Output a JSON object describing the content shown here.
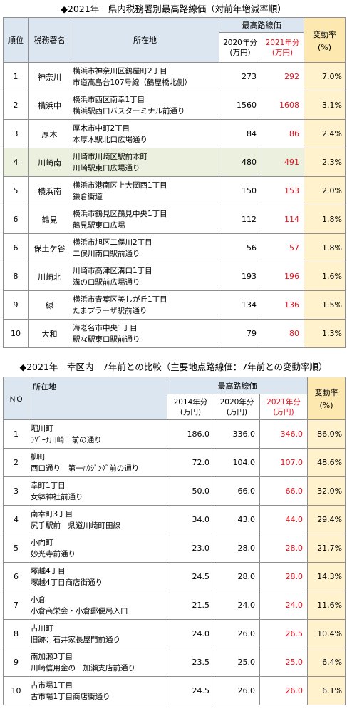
{
  "table1": {
    "title": "◆2021年　県内税務署別最高路線価（対前年増減率順）",
    "headers": {
      "rank": "順位",
      "office": "税務署名",
      "location": "所在地",
      "group": "最高路線価",
      "y2020": "2020年分",
      "y2021": "2021年分",
      "unit": "(万円)",
      "rate": "変動率",
      "rate_unit": "(%)"
    },
    "rows": [
      {
        "rank": "1",
        "office": "神奈川",
        "addr1": "横浜市神奈川区鶴屋町2丁目",
        "addr2": "市道高島台107号線（鶴屋橋北側）",
        "v2020": "273",
        "v2021": "292",
        "rate": "7.0%"
      },
      {
        "rank": "2",
        "office": "横浜中",
        "addr1": "横浜市西区南幸1丁目",
        "addr2": "横浜駅西口バスターミナル前通り",
        "v2020": "1560",
        "v2021": "1608",
        "rate": "3.1%"
      },
      {
        "rank": "3",
        "office": "厚木",
        "addr1": "厚木市中町2丁目",
        "addr2": "本厚木駅北口広場通り",
        "v2020": "84",
        "v2021": "86",
        "rate": "2.4%"
      },
      {
        "rank": "4",
        "office": "川崎南",
        "addr1": "川崎市川崎区駅前本町",
        "addr2": "川崎駅東口広場通り",
        "v2020": "480",
        "v2021": "491",
        "rate": "2.3%"
      },
      {
        "rank": "5",
        "office": "横浜南",
        "addr1": "横浜市港南区上大岡西1丁目",
        "addr2": "鎌倉街道",
        "v2020": "150",
        "v2021": "153",
        "rate": "2.0%"
      },
      {
        "rank": "6",
        "office": "鶴見",
        "addr1": "横浜市鶴見区鶴見中央1丁目",
        "addr2": "鶴見駅東口広場",
        "v2020": "112",
        "v2021": "114",
        "rate": "1.8%"
      },
      {
        "rank": "6",
        "office": "保土ケ谷",
        "addr1": "横浜市旭区二俣川2丁目",
        "addr2": "二俣川南口駅前通り",
        "v2020": "56",
        "v2021": "57",
        "rate": "1.8%"
      },
      {
        "rank": "8",
        "office": "川崎北",
        "addr1": "川崎市高津区溝口1丁目",
        "addr2": "溝の口駅前広場通り",
        "v2020": "193",
        "v2021": "196",
        "rate": "1.6%"
      },
      {
        "rank": "9",
        "office": "緑",
        "addr1": "横浜市青葉区美しが丘1丁目",
        "addr2": "たまプラーザ駅前通り",
        "v2020": "134",
        "v2021": "136",
        "rate": "1.5%"
      },
      {
        "rank": "10",
        "office": "大和",
        "addr1": "海老名市中央1丁目",
        "addr2": "駅な駅東口駅前通り",
        "v2020": "79",
        "v2021": "80",
        "rate": "1.3%"
      }
    ]
  },
  "table2": {
    "title": "◆2021年　幸区内　7年前との比較（主要地点路線価：7年前との変動率順）",
    "headers": {
      "no": "ＮＯ",
      "location": "所在地",
      "group": "最高路線価",
      "y2014": "2014年分",
      "y2020": "2020年分",
      "y2021": "2021年分",
      "unit": "(万円)",
      "rate": "変動率",
      "rate_unit": "(%)"
    },
    "rows": [
      {
        "no": "1",
        "addr1": "堀川町",
        "addr2": "ﾗｿﾞｰﾅ川崎　前の通り",
        "v2014": "186.0",
        "v2020": "336.0",
        "v2021": "346.0",
        "rate": "86.0%"
      },
      {
        "no": "2",
        "addr1": "柳町",
        "addr2": "西口通り　第一ﾊｳｼﾞﾝｸﾞ前の通り",
        "v2014": "72.0",
        "v2020": "104.0",
        "v2021": "107.0",
        "rate": "48.6%"
      },
      {
        "no": "3",
        "addr1": "幸町1丁目",
        "addr2": "女躰神社前通り",
        "v2014": "50.0",
        "v2020": "66.0",
        "v2021": "66.0",
        "rate": "32.0%"
      },
      {
        "no": "4",
        "addr1": "南幸町3丁目",
        "addr2": "尻手駅前　県道川崎町田線",
        "v2014": "34.0",
        "v2020": "43.0",
        "v2021": "44.0",
        "rate": "29.4%"
      },
      {
        "no": "5",
        "addr1": "小向町",
        "addr2": "妙光寺前通り",
        "v2014": "23.0",
        "v2020": "28.0",
        "v2021": "28.0",
        "rate": "21.7%"
      },
      {
        "no": "6",
        "addr1": "塚越4丁目",
        "addr2": "塚越4丁目商店街通り",
        "v2014": "24.5",
        "v2020": "28.0",
        "v2021": "28.0",
        "rate": "14.3%"
      },
      {
        "no": "7",
        "addr1": "小倉",
        "addr2": "小倉商栄会・小倉郵便局入口",
        "v2014": "21.5",
        "v2020": "24.0",
        "v2021": "24.0",
        "rate": "11.6%"
      },
      {
        "no": "8",
        "addr1": "古川町",
        "addr2": "旧跡：石井家長屋門前通り",
        "v2014": "24.0",
        "v2020": "26.0",
        "v2021": "26.5",
        "rate": "10.4%"
      },
      {
        "no": "9",
        "addr1": "南加瀬3丁目",
        "addr2": "川崎信用金の　加瀬支店前通り",
        "v2014": "23.5",
        "v2020": "25.0",
        "v2021": "25.0",
        "rate": "6.4%"
      },
      {
        "no": "10",
        "addr1": "古市場1丁目",
        "addr2": "古市場1丁目商店街通り",
        "v2014": "24.5",
        "v2020": "26.0",
        "v2021": "26.0",
        "rate": "6.1%"
      }
    ]
  },
  "colors": {
    "header_blue": "#dce6f1",
    "rate_yellow": "#fff2cc",
    "highlight_green": "#ebf1de",
    "red_value": "#e8101d"
  }
}
